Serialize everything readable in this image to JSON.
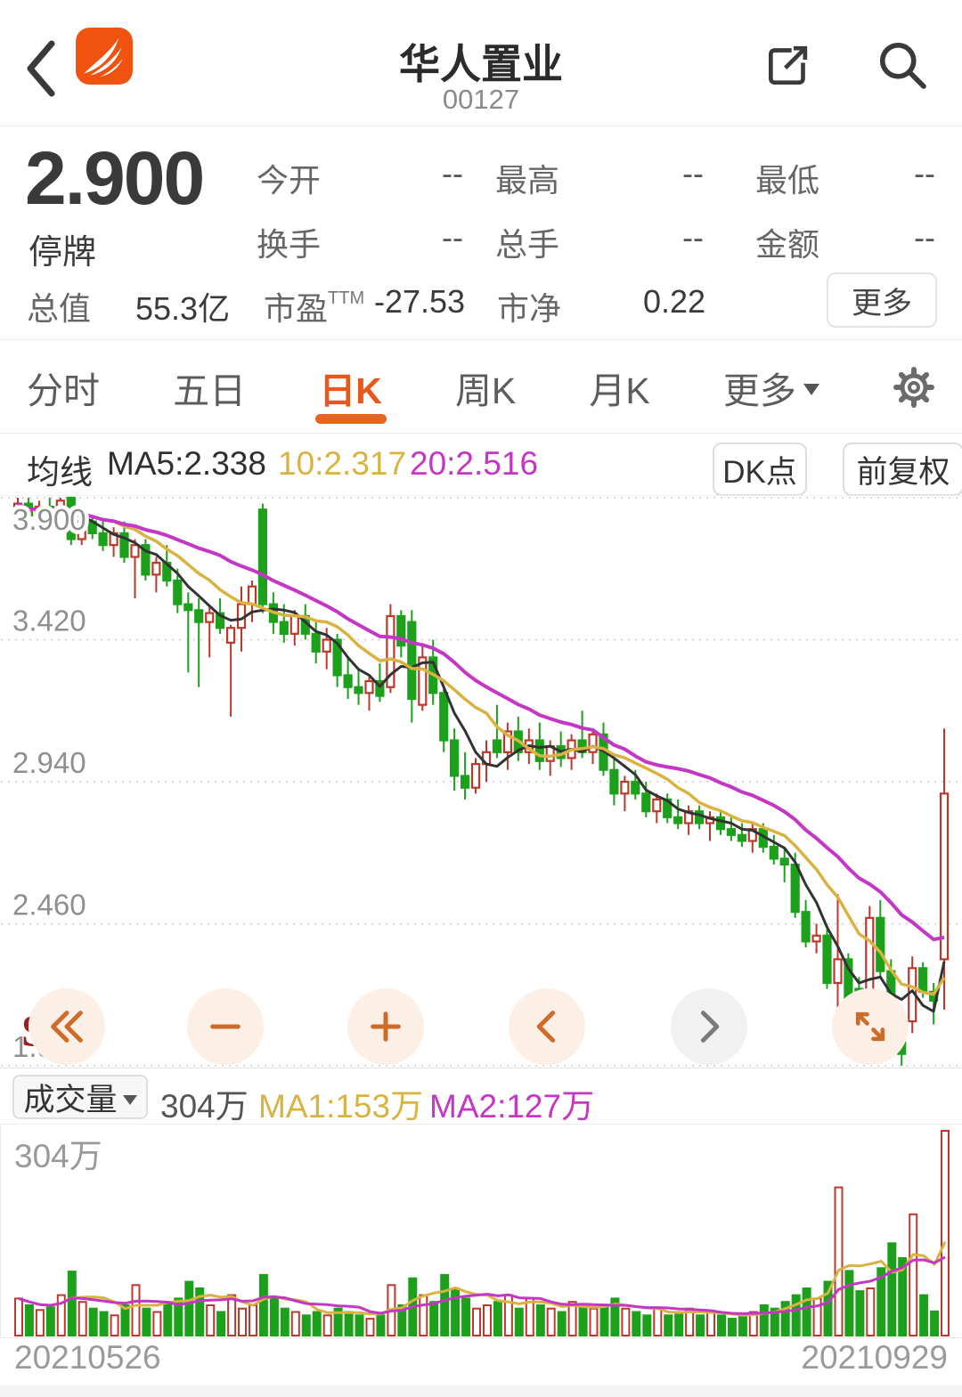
{
  "header": {
    "title": "华人置业",
    "code": "00127"
  },
  "quote": {
    "price": "2.900",
    "status": "停牌",
    "row1": [
      {
        "label": "今开",
        "value": "--"
      },
      {
        "label": "最高",
        "value": "--"
      },
      {
        "label": "最低",
        "value": "--"
      }
    ],
    "row2": [
      {
        "label": "换手",
        "value": "--"
      },
      {
        "label": "总手",
        "value": "--"
      },
      {
        "label": "金额",
        "value": "--"
      }
    ],
    "row3": {
      "cap_label": "总值",
      "cap_value": "55.3亿",
      "pe_label": "市盈",
      "pe_sup": "TTM",
      "pe_value": "-27.53",
      "pb_label": "市净",
      "pb_value": "0.22"
    },
    "more_label": "更多"
  },
  "tabbar": {
    "tabs": [
      "分时",
      "五日",
      "日K",
      "周K",
      "月K"
    ],
    "active": "日K",
    "more_label": "更多"
  },
  "ma_legend": {
    "title": "均线",
    "ma5": "MA5:2.338",
    "ma10": "10:2.317",
    "ma20": "20:2.516",
    "dk_label": "DK点",
    "adjust_label": "前复权"
  },
  "sell_marker": "S",
  "volume_legend": {
    "label": "成交量",
    "current": "304万",
    "ma1": "MA1:153万",
    "ma2": "MA2:127万"
  },
  "volume_axis_max_label": "304万",
  "dates": {
    "start": "20210526",
    "end": "20210929"
  },
  "colors": {
    "accent_orange": "#e8641f",
    "up_red": "#bd382c",
    "down_green": "#1da11d",
    "ma5": "#333333",
    "ma10": "#d9b340",
    "ma20": "#c436c4",
    "grid": "#cbcbcb",
    "axis_text": "#8f8f8f"
  },
  "chart_data": {
    "type": "candlestick",
    "title": "华人置业 日K 前复权",
    "x_range": [
      "20210526",
      "20210929"
    ],
    "price_axis": {
      "ticks": [
        "3.900",
        "3.420",
        "2.940",
        "2.460",
        "1.980"
      ],
      "max": 3.9,
      "min": 1.98
    },
    "volume_axis": {
      "max": 304,
      "unit": "万",
      "max_label": "304万"
    },
    "ma_values": {
      "ma5": 2.338,
      "ma10": 2.317,
      "ma20": 2.516
    },
    "volume_ma_values": {
      "ma1": 153,
      "ma2": 127
    },
    "legend_note": "red-hollow=up, green-solid=down",
    "candles": [
      [
        3.86,
        3.9,
        3.82,
        3.88
      ],
      [
        3.88,
        3.9,
        3.83,
        3.84
      ],
      [
        3.84,
        3.89,
        3.81,
        3.87
      ],
      [
        3.87,
        3.9,
        3.84,
        3.85
      ],
      [
        3.85,
        3.9,
        3.84,
        3.89
      ],
      [
        3.9,
        3.9,
        3.74,
        3.76
      ],
      [
        3.76,
        3.84,
        3.74,
        3.82
      ],
      [
        3.82,
        3.84,
        3.76,
        3.78
      ],
      [
        3.78,
        3.82,
        3.72,
        3.74
      ],
      [
        3.74,
        3.8,
        3.7,
        3.78
      ],
      [
        3.78,
        3.82,
        3.68,
        3.7
      ],
      [
        3.7,
        3.76,
        3.56,
        3.74
      ],
      [
        3.74,
        3.76,
        3.62,
        3.64
      ],
      [
        3.64,
        3.7,
        3.58,
        3.68
      ],
      [
        3.68,
        3.74,
        3.6,
        3.62
      ],
      [
        3.62,
        3.66,
        3.51,
        3.54
      ],
      [
        3.54,
        3.58,
        3.31,
        3.52
      ],
      [
        3.52,
        3.56,
        3.26,
        3.48
      ],
      [
        3.48,
        3.54,
        3.36,
        3.51
      ],
      [
        3.51,
        3.56,
        3.44,
        3.46
      ],
      [
        3.41,
        3.47,
        3.16,
        3.46
      ],
      [
        3.46,
        3.6,
        3.38,
        3.54
      ],
      [
        3.54,
        3.62,
        3.48,
        3.6
      ],
      [
        3.86,
        3.88,
        3.51,
        3.54
      ],
      [
        3.54,
        3.58,
        3.44,
        3.48
      ],
      [
        3.48,
        3.54,
        3.41,
        3.44
      ],
      [
        3.44,
        3.52,
        3.4,
        3.5
      ],
      [
        3.5,
        3.54,
        3.42,
        3.44
      ],
      [
        3.44,
        3.48,
        3.34,
        3.38
      ],
      [
        3.38,
        3.46,
        3.32,
        3.42
      ],
      [
        3.42,
        3.44,
        3.26,
        3.3
      ],
      [
        3.3,
        3.36,
        3.22,
        3.26
      ],
      [
        3.26,
        3.32,
        3.2,
        3.24
      ],
      [
        3.24,
        3.3,
        3.18,
        3.28
      ],
      [
        3.28,
        3.34,
        3.21,
        3.23
      ],
      [
        3.26,
        3.54,
        3.24,
        3.5
      ],
      [
        3.5,
        3.52,
        3.36,
        3.4
      ],
      [
        3.48,
        3.52,
        3.14,
        3.22
      ],
      [
        3.2,
        3.4,
        3.18,
        3.36
      ],
      [
        3.36,
        3.42,
        3.2,
        3.24
      ],
      [
        3.24,
        3.26,
        3.04,
        3.08
      ],
      [
        3.08,
        3.12,
        2.91,
        2.96
      ],
      [
        2.96,
        3.04,
        2.88,
        2.92
      ],
      [
        2.92,
        3.02,
        2.9,
        3.0
      ],
      [
        3.0,
        3.08,
        2.94,
        3.04
      ],
      [
        3.08,
        3.2,
        3.02,
        3.04
      ],
      [
        3.04,
        3.14,
        2.98,
        3.11
      ],
      [
        3.11,
        3.16,
        3.01,
        3.04
      ],
      [
        3.04,
        3.12,
        3.0,
        3.08
      ],
      [
        3.08,
        3.14,
        2.98,
        3.01
      ],
      [
        3.01,
        3.08,
        2.96,
        3.06
      ],
      [
        3.06,
        3.11,
        2.99,
        3.02
      ],
      [
        3.02,
        3.1,
        2.98,
        3.08
      ],
      [
        3.08,
        3.18,
        3.02,
        3.04
      ],
      [
        3.04,
        3.12,
        3.0,
        3.1
      ],
      [
        3.1,
        3.14,
        2.96,
        2.98
      ],
      [
        2.98,
        3.02,
        2.86,
        2.9
      ],
      [
        2.9,
        2.96,
        2.84,
        2.94
      ],
      [
        2.94,
        2.98,
        2.88,
        2.9
      ],
      [
        2.9,
        2.94,
        2.82,
        2.84
      ],
      [
        2.84,
        2.9,
        2.8,
        2.88
      ],
      [
        2.88,
        2.9,
        2.8,
        2.82
      ],
      [
        2.82,
        2.88,
        2.78,
        2.8
      ],
      [
        2.8,
        2.86,
        2.76,
        2.84
      ],
      [
        2.84,
        2.86,
        2.78,
        2.8
      ],
      [
        2.8,
        2.84,
        2.74,
        2.82
      ],
      [
        2.82,
        2.84,
        2.76,
        2.78
      ],
      [
        2.78,
        2.82,
        2.74,
        2.76
      ],
      [
        2.76,
        2.8,
        2.72,
        2.74
      ],
      [
        2.74,
        2.8,
        2.7,
        2.78
      ],
      [
        2.78,
        2.8,
        2.7,
        2.72
      ],
      [
        2.72,
        2.76,
        2.66,
        2.68
      ],
      [
        2.68,
        2.72,
        2.6,
        2.66
      ],
      [
        2.66,
        2.7,
        2.48,
        2.5
      ],
      [
        2.5,
        2.54,
        2.38,
        2.4
      ],
      [
        2.4,
        2.46,
        2.36,
        2.42
      ],
      [
        2.42,
        2.44,
        2.24,
        2.26
      ],
      [
        2.26,
        2.56,
        2.13,
        2.34
      ],
      [
        2.34,
        2.36,
        2.1,
        2.12
      ],
      [
        2.24,
        2.28,
        2.12,
        2.16
      ],
      [
        2.16,
        2.52,
        2.14,
        2.48
      ],
      [
        2.48,
        2.54,
        2.28,
        2.3
      ],
      [
        2.3,
        2.34,
        2.02,
        2.06
      ],
      [
        2.06,
        2.1,
        1.98,
        2.02
      ],
      [
        2.13,
        2.35,
        2.09,
        2.31
      ],
      [
        2.31,
        2.33,
        2.21,
        2.23
      ],
      [
        2.23,
        2.26,
        2.12,
        2.2
      ],
      [
        2.34,
        3.12,
        2.17,
        2.9
      ]
    ],
    "volumes": [
      55,
      45,
      38,
      42,
      60,
      95,
      50,
      40,
      35,
      30,
      45,
      75,
      40,
      35,
      50,
      55,
      80,
      70,
      45,
      35,
      60,
      40,
      45,
      90,
      55,
      40,
      35,
      30,
      35,
      30,
      40,
      35,
      30,
      25,
      30,
      75,
      45,
      85,
      60,
      50,
      90,
      70,
      55,
      40,
      45,
      50,
      60,
      40,
      55,
      45,
      40,
      35,
      50,
      45,
      40,
      45,
      55,
      40,
      35,
      30,
      40,
      30,
      35,
      40,
      30,
      35,
      30,
      25,
      30,
      35,
      45,
      40,
      50,
      60,
      70,
      55,
      80,
      220,
      96,
      66,
      70,
      100,
      137,
      115,
      180,
      60,
      36,
      304
    ]
  }
}
